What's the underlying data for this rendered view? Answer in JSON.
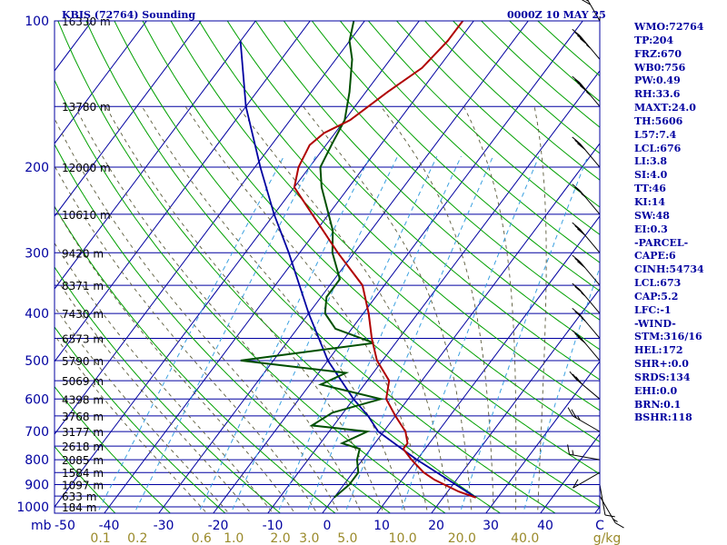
{
  "header": {
    "station": "KBIS (72764) Sounding",
    "time": "0000Z 10 MAY 25"
  },
  "indices": [
    "WMO:72764",
    "TP:204",
    "FRZ:670",
    "WB0:756",
    "PW:0.49",
    "RH:33.6",
    "MAXT:24.0",
    "TH:5606",
    "L57:7.4",
    "LCL:676",
    "LI:3.8",
    "SI:4.0",
    "TT:46",
    "KI:14",
    "SW:48",
    "EI:0.3",
    "-PARCEL-",
    "CAPE:6",
    "CINH:54734",
    "LCL:673",
    "CAP:5.2",
    "LFC:-1",
    "-WIND-",
    "STM:316/16",
    "HEL:172",
    "SHR+:0.0",
    "SRDS:134",
    "EHI:0.0",
    "BRN:0.1",
    "BSHR:118"
  ],
  "chart_data": {
    "type": "skew-t",
    "title": "KBIS (72764) Sounding",
    "xlabel": "mb",
    "x_units": "C",
    "mixing_units": "g/kg",
    "xlim": [
      -50,
      50
    ],
    "ylim": [
      1000,
      100
    ],
    "y_log_scale": true,
    "pressure_ticks": [
      100,
      200,
      300,
      400,
      500,
      600,
      700,
      800,
      900,
      1000
    ],
    "temperature_ticks": [
      -50,
      -40,
      -30,
      -20,
      -10,
      0,
      10,
      20,
      30,
      40
    ],
    "temperature_tick_labels": [
      "-50",
      "-40",
      "-30",
      "-20",
      "-10",
      "0",
      "10",
      "20",
      "30",
      "40"
    ],
    "corner_label": "C",
    "mixing_ratio_labels": [
      "0.1",
      "0.2",
      "0.6",
      "1.0",
      "2.0",
      "3.0",
      "5.0",
      "10.0",
      "20.0",
      "40.0"
    ],
    "height_labels": [
      {
        "p": 100,
        "label": "16330 m"
      },
      {
        "p": 150,
        "label": "13780 m"
      },
      {
        "p": 200,
        "label": "12000 m"
      },
      {
        "p": 250,
        "label": "10610 m"
      },
      {
        "p": 300,
        "label": "9420 m"
      },
      {
        "p": 350,
        "label": "8371 m"
      },
      {
        "p": 400,
        "label": "7430 m"
      },
      {
        "p": 450,
        "label": "6573 m"
      },
      {
        "p": 500,
        "label": "5790 m"
      },
      {
        "p": 550,
        "label": "5069 m"
      },
      {
        "p": 600,
        "label": "4398 m"
      },
      {
        "p": 650,
        "label": "3768 m"
      },
      {
        "p": 700,
        "label": "3177 m"
      },
      {
        "p": 750,
        "label": "2618 m"
      },
      {
        "p": 800,
        "label": "2085 m"
      },
      {
        "p": 850,
        "label": "1584 m"
      },
      {
        "p": 900,
        "label": "1097 m"
      },
      {
        "p": 950,
        "label": "633 m"
      },
      {
        "p": 1000,
        "label": "184 m"
      }
    ],
    "temperature": [
      [
        957,
        26
      ],
      [
        930,
        22
      ],
      [
        880,
        16
      ],
      [
        850,
        13
      ],
      [
        800,
        9
      ],
      [
        760,
        6
      ],
      [
        740,
        6
      ],
      [
        700,
        4
      ],
      [
        650,
        0
      ],
      [
        600,
        -4
      ],
      [
        550,
        -6
      ],
      [
        500,
        -11
      ],
      [
        450,
        -15
      ],
      [
        400,
        -19
      ],
      [
        350,
        -24
      ],
      [
        300,
        -33
      ],
      [
        250,
        -43
      ],
      [
        220,
        -50
      ],
      [
        200,
        -52
      ],
      [
        180,
        -53
      ],
      [
        170,
        -52
      ],
      [
        160,
        -49
      ],
      [
        140,
        -46
      ],
      [
        125,
        -43
      ],
      [
        110,
        -42
      ],
      [
        100,
        -42
      ]
    ],
    "dewpoint": [
      [
        957,
        0
      ],
      [
        900,
        1
      ],
      [
        850,
        1
      ],
      [
        800,
        -1
      ],
      [
        760,
        -2
      ],
      [
        740,
        -6
      ],
      [
        700,
        -3
      ],
      [
        680,
        -14
      ],
      [
        640,
        -12
      ],
      [
        600,
        -5
      ],
      [
        560,
        -18
      ],
      [
        530,
        -15
      ],
      [
        500,
        -36
      ],
      [
        460,
        -14
      ],
      [
        430,
        -23
      ],
      [
        400,
        -27
      ],
      [
        370,
        -29
      ],
      [
        340,
        -29
      ],
      [
        300,
        -34
      ],
      [
        270,
        -37
      ],
      [
        250,
        -40
      ],
      [
        220,
        -45
      ],
      [
        200,
        -48
      ],
      [
        180,
        -49
      ],
      [
        160,
        -50
      ],
      [
        140,
        -53
      ],
      [
        120,
        -57
      ],
      [
        110,
        -60
      ],
      [
        100,
        -62
      ]
    ],
    "parcel": [
      [
        957,
        26
      ],
      [
        800,
        10
      ],
      [
        700,
        -1
      ],
      [
        650,
        -5
      ],
      [
        600,
        -10
      ],
      [
        500,
        -20
      ],
      [
        400,
        -30
      ],
      [
        300,
        -42
      ],
      [
        250,
        -50
      ],
      [
        200,
        -59
      ],
      [
        150,
        -70
      ],
      [
        110,
        -80
      ]
    ],
    "wind_barbs": [
      {
        "p": 950,
        "dir": 150,
        "spd": 15
      },
      {
        "p": 900,
        "dir": 170,
        "spd": 10
      },
      {
        "p": 850,
        "dir": 240,
        "spd": 10
      },
      {
        "p": 800,
        "dir": 280,
        "spd": 15
      },
      {
        "p": 700,
        "dir": 300,
        "spd": 25
      },
      {
        "p": 600,
        "dir": 310,
        "spd": 30
      },
      {
        "p": 500,
        "dir": 320,
        "spd": 30
      },
      {
        "p": 450,
        "dir": 320,
        "spd": 25
      },
      {
        "p": 400,
        "dir": 320,
        "spd": 25
      },
      {
        "p": 350,
        "dir": 320,
        "spd": 30
      },
      {
        "p": 300,
        "dir": 320,
        "spd": 30
      },
      {
        "p": 250,
        "dir": 320,
        "spd": 25
      },
      {
        "p": 200,
        "dir": 320,
        "spd": 30
      },
      {
        "p": 150,
        "dir": 320,
        "spd": 45
      },
      {
        "p": 120,
        "dir": 320,
        "spd": 45
      },
      {
        "p": 100,
        "dir": 330,
        "spd": 40
      }
    ],
    "colors": {
      "temperature": "#b00000",
      "dewpoint": "#005000",
      "parcel": "#0000a0",
      "isobar": "#0000a0",
      "isotherm": "#0000a0",
      "dry_adiabat": "#00a000",
      "moist_adiabat": "#5a5a3a",
      "mixing_ratio": "#3aa0e0",
      "frame": "#0000a0"
    }
  }
}
